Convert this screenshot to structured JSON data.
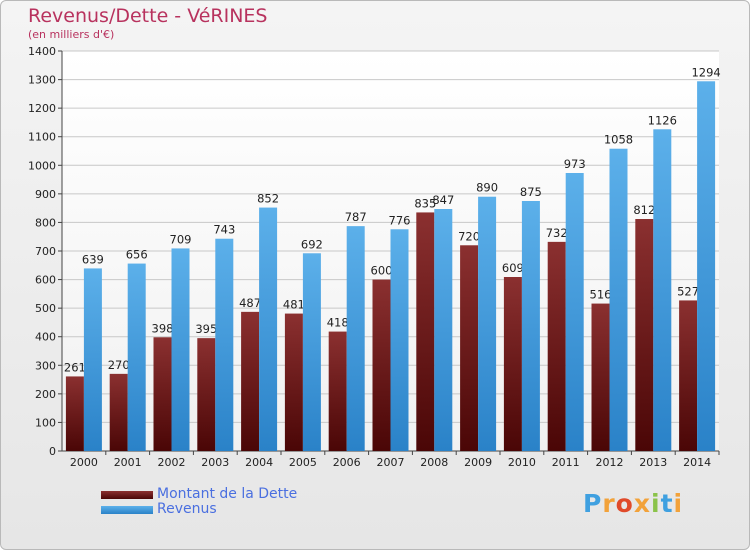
{
  "header": {
    "title": "Revenus/Dette - VéRINES",
    "subtitle": "(en milliers d'€)"
  },
  "chart_data": {
    "type": "bar",
    "title": "Revenus/Dette - VéRINES",
    "subtitle": "(en milliers d'€)",
    "xlabel": "",
    "ylabel": "",
    "ylim": [
      0,
      1400
    ],
    "yticks": [
      0,
      100,
      200,
      300,
      400,
      500,
      600,
      700,
      800,
      900,
      1000,
      1100,
      1200,
      1300,
      1400
    ],
    "grid": true,
    "legend_position": "bottom-left",
    "categories": [
      "2000",
      "2001",
      "2002",
      "2003",
      "2004",
      "2005",
      "2006",
      "2007",
      "2008",
      "2009",
      "2010",
      "2011",
      "2012",
      "2013",
      "2014"
    ],
    "series": [
      {
        "name": "Montant de la Dette",
        "color": "#7a1a1a",
        "values": [
          261,
          270,
          398,
          395,
          487,
          481,
          418,
          600,
          835,
          720,
          609,
          732,
          516,
          812,
          527
        ],
        "labels": [
          "261",
          "270",
          "398",
          "395",
          "487",
          "481",
          "418",
          "600",
          "835",
          "720",
          "609",
          "732",
          "516",
          "812",
          "527"
        ]
      },
      {
        "name": "Revenus",
        "color": "#3a9ad9",
        "values": [
          639,
          656,
          709,
          743,
          852,
          692,
          787,
          776,
          847,
          890,
          875,
          973,
          1058,
          1126,
          1294
        ],
        "labels": [
          "639",
          "656",
          "709",
          "743",
          "852",
          "692",
          "787",
          "776",
          "847",
          "890",
          "875",
          "973",
          "1058",
          "1126",
          "1294"
        ]
      }
    ]
  },
  "legend": {
    "items": [
      {
        "label": "Montant de la Dette",
        "color": "#7a1a1a"
      },
      {
        "label": "Revenus",
        "color": "#3a9ad9"
      }
    ]
  },
  "logo": {
    "text": "Proxiti",
    "colors": [
      "#3fa0e0",
      "#f2a23a",
      "#e04a2a",
      "#f2a23a",
      "#8bc34a",
      "#3fa0e0",
      "#f2a23a"
    ]
  }
}
